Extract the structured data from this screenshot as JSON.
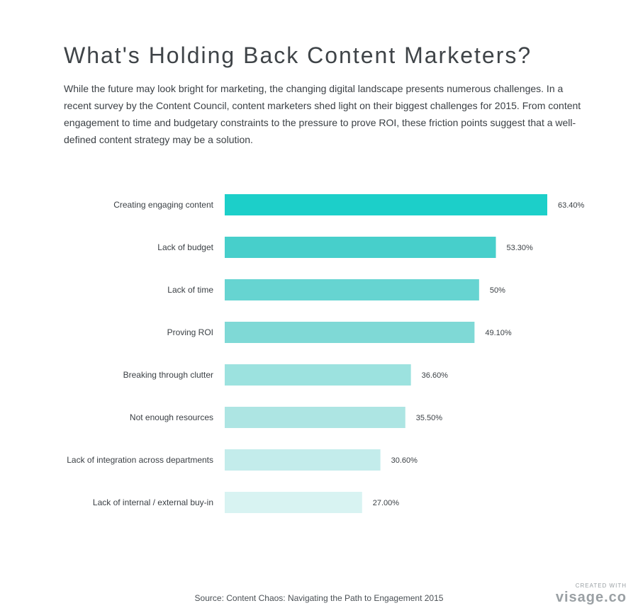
{
  "chart_data": {
    "type": "bar",
    "orientation": "horizontal",
    "title": "What's Holding Back Content Marketers?",
    "subtitle": "While the future may look bright for marketing, the changing digital landscape presents numerous challenges. In a recent survey by the Content Council, content marketers shed light on their biggest challenges for 2015. From content engagement to time and budgetary constraints to the pressure to prove ROI, these friction points suggest that a well-defined content strategy may be a solution.",
    "categories": [
      "Creating engaging content",
      "Lack of budget",
      "Lack of time",
      "Proving ROI",
      "Breaking through clutter",
      "Not enough resources",
      "Lack of integration across departments",
      "Lack of internal / external buy-in"
    ],
    "values": [
      63.4,
      53.3,
      50,
      49.1,
      36.6,
      35.5,
      30.6,
      27.0
    ],
    "value_labels": [
      "63.40%",
      "53.30%",
      "50%",
      "49.10%",
      "36.60%",
      "35.50%",
      "30.60%",
      "27.00%"
    ],
    "colors": [
      "#1ccfc9",
      "#47cfcb",
      "#66d4d1",
      "#7fd9d6",
      "#9ce2df",
      "#ade5e3",
      "#c3eceb",
      "#d8f3f2"
    ],
    "xlabel": "",
    "ylabel": "",
    "xlim": [
      0,
      63.4
    ],
    "grid": false,
    "legend": "none"
  },
  "source": "Source: Content Chaos: Navigating the Path to Engagement 2015",
  "branding": {
    "created_with": "CREATED WITH",
    "name": "visage.co"
  }
}
